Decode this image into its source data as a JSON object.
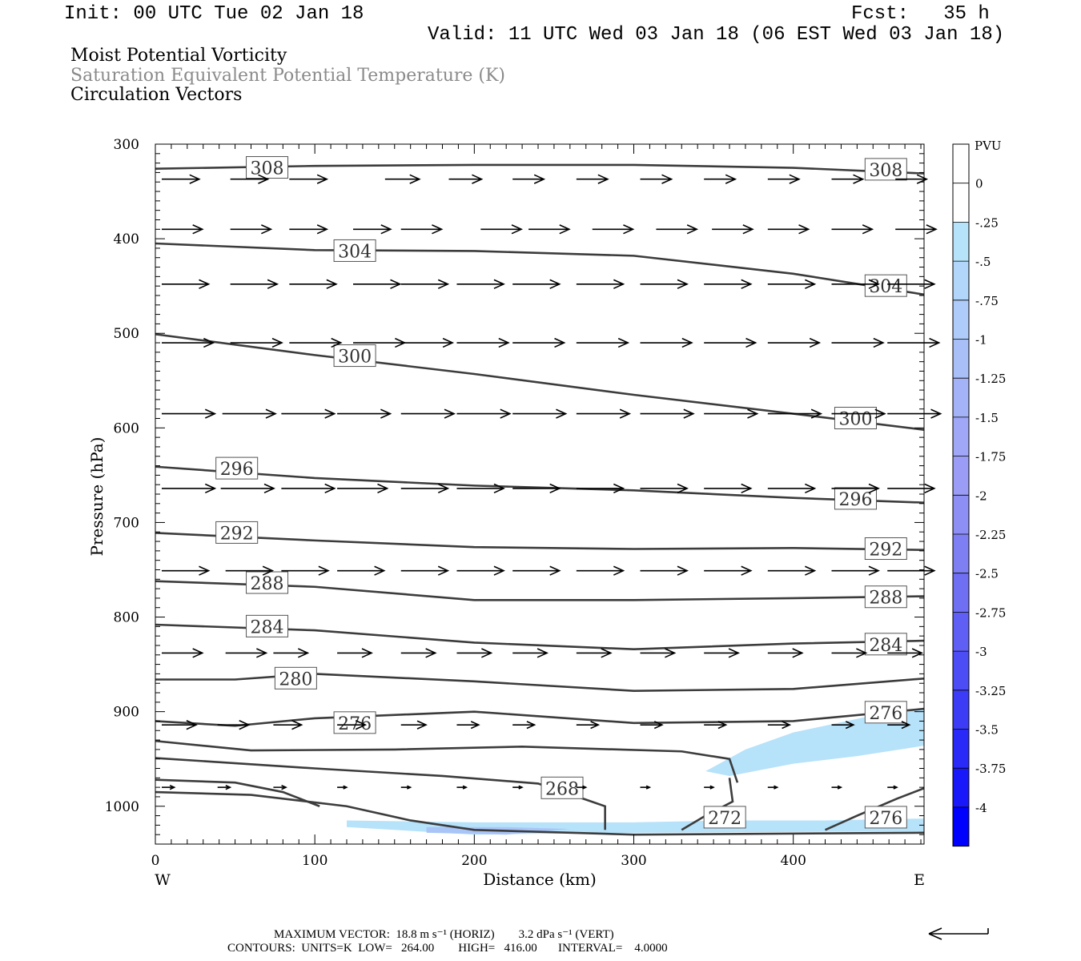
{
  "header": {
    "init": "Init: 00 UTC Tue 02 Jan 18",
    "fcst": "Fcst:   35 h",
    "valid": "Valid: 11 UTC Wed 03 Jan 18 (06 EST Wed 03 Jan 18)",
    "field1": "Moist Potential Vorticity",
    "field2": "Saturation Equivalent Potential Temperature (K)",
    "field3": "Circulation Vectors"
  },
  "footer": {
    "max_vector": "MAXIMUM VECTOR:  18.8 m s⁻¹ (HORIZ)        3.2 dPa s⁻¹ (VERT)",
    "contours": "CONTOURS:  UNITS=K  LOW=   264.00        HIGH=   416.00       INTERVAL=    4.0000"
  },
  "colors": {
    "contour": "#3c3c3c",
    "pv_shade_light": "#b6e2fa",
    "pv_shade_mid": "#a9c5f7",
    "pv_shade_deep": "#8f9cf0",
    "vector": "#000000"
  },
  "chart_data": {
    "type": "cross-section",
    "xlabel": "Distance (km)",
    "ylabel": "Pressure (hPa)",
    "x_left_label": "W",
    "x_right_label": "E",
    "xlim": [
      0,
      482
    ],
    "ylim": [
      300,
      1040
    ],
    "y_scale": "linear, inverted",
    "x_ticks": [
      0,
      100,
      200,
      300,
      400
    ],
    "y_ticks": [
      300,
      400,
      500,
      600,
      700,
      800,
      900,
      1000
    ],
    "colorbar": {
      "title": "PVU",
      "labels": [
        "0",
        "-.25",
        "-.5",
        "-.75",
        "-1",
        "-1.25",
        "-1.5",
        "-1.75",
        "-2",
        "-2.25",
        "-2.5",
        "-2.75",
        "-3",
        "-3.25",
        "-3.5",
        "-3.75",
        "-4"
      ],
      "colors": [
        "#ffffff",
        "#ffffff",
        "#b6e2fa",
        "#b1d6f9",
        "#aecbf9",
        "#a9bff8",
        "#a4b3f7",
        "#9fa7f6",
        "#9a9cf5",
        "#8e8ff4",
        "#7f7ff4",
        "#6f6ff4",
        "#5f5ff5",
        "#4d4df6",
        "#3c3cf7",
        "#2a2af8",
        "#1818fa",
        "#0000ff"
      ]
    },
    "contours": [
      {
        "label": "308",
        "points": [
          [
            0,
            326
          ],
          [
            100,
            323
          ],
          [
            200,
            322
          ],
          [
            300,
            322
          ],
          [
            400,
            325
          ],
          [
            482,
            331
          ]
        ],
        "label_positions": [
          [
            56,
            325
          ],
          [
            444,
            327
          ]
        ]
      },
      {
        "label": "304",
        "points": [
          [
            0,
            405
          ],
          [
            100,
            412
          ],
          [
            200,
            413
          ],
          [
            300,
            418
          ],
          [
            400,
            437
          ],
          [
            482,
            459
          ]
        ],
        "label_positions": [
          [
            111,
            413
          ],
          [
            444,
            450
          ]
        ]
      },
      {
        "label": "300",
        "points": [
          [
            0,
            501
          ],
          [
            100,
            523
          ],
          [
            200,
            543
          ],
          [
            300,
            565
          ],
          [
            400,
            585
          ],
          [
            482,
            602
          ]
        ],
        "label_positions": [
          [
            111,
            524
          ],
          [
            425,
            590
          ]
        ]
      },
      {
        "label": "296",
        "points": [
          [
            0,
            641
          ],
          [
            100,
            653
          ],
          [
            200,
            661
          ],
          [
            300,
            666
          ],
          [
            400,
            674
          ],
          [
            482,
            679
          ]
        ],
        "label_positions": [
          [
            37,
            643
          ],
          [
            425,
            675
          ]
        ]
      },
      {
        "label": "292",
        "points": [
          [
            0,
            711
          ],
          [
            100,
            719
          ],
          [
            200,
            726
          ],
          [
            300,
            728
          ],
          [
            400,
            727
          ],
          [
            482,
            729
          ]
        ],
        "label_positions": [
          [
            37,
            711
          ],
          [
            444,
            728
          ]
        ]
      },
      {
        "label": "288",
        "points": [
          [
            0,
            762
          ],
          [
            100,
            768
          ],
          [
            200,
            782
          ],
          [
            300,
            782
          ],
          [
            400,
            780
          ],
          [
            482,
            778
          ]
        ],
        "label_positions": [
          [
            56,
            764
          ],
          [
            444,
            779
          ]
        ]
      },
      {
        "label": "284",
        "points": [
          [
            0,
            808
          ],
          [
            100,
            814
          ],
          [
            200,
            827
          ],
          [
            300,
            834
          ],
          [
            400,
            828
          ],
          [
            482,
            825
          ]
        ],
        "label_positions": [
          [
            56,
            810
          ],
          [
            444,
            829
          ]
        ]
      },
      {
        "label": "280",
        "points": [
          [
            0,
            866
          ],
          [
            50,
            866
          ],
          [
            100,
            860
          ],
          [
            200,
            868
          ],
          [
            300,
            878
          ],
          [
            400,
            876
          ],
          [
            482,
            865
          ]
        ],
        "label_positions": [
          [
            74,
            865
          ],
          [
            444,
            0
          ]
        ]
      },
      {
        "label": "276",
        "points": [
          [
            0,
            910
          ],
          [
            50,
            915
          ],
          [
            100,
            907
          ],
          [
            200,
            900
          ],
          [
            300,
            912
          ],
          [
            400,
            910
          ],
          [
            482,
            897
          ]
        ],
        "label_positions": [
          [
            111,
            912
          ],
          [
            444,
            901
          ]
        ]
      },
      {
        "label": "",
        "points": [
          [
            0,
            931
          ],
          [
            60,
            941
          ],
          [
            150,
            940
          ],
          [
            230,
            937
          ],
          [
            330,
            942
          ],
          [
            360,
            950
          ],
          [
            365,
            975
          ]
        ],
        "label_positions": []
      },
      {
        "label": "268",
        "points": [
          [
            0,
            949
          ],
          [
            100,
            960
          ],
          [
            180,
            968
          ],
          [
            240,
            976
          ],
          [
            270,
            993
          ],
          [
            282,
            1000
          ],
          [
            282,
            1025
          ]
        ],
        "label_positions": [
          [
            241,
            981
          ]
        ]
      },
      {
        "label": "",
        "points": [
          [
            0,
            972
          ],
          [
            50,
            975
          ],
          [
            80,
            985
          ],
          [
            103,
            1000
          ]
        ],
        "label_positions": []
      },
      {
        "label": "",
        "points": [
          [
            0,
            985
          ],
          [
            60,
            988
          ],
          [
            120,
            1000
          ],
          [
            160,
            1015
          ],
          [
            200,
            1025
          ],
          [
            300,
            1030
          ],
          [
            482,
            1028
          ]
        ],
        "label_positions": []
      },
      {
        "label": "272",
        "points": [
          [
            330,
            1025
          ],
          [
            345,
            1010
          ],
          [
            362,
            995
          ],
          [
            360,
            970
          ]
        ],
        "label_positions": [
          [
            343,
            1012
          ]
        ]
      },
      {
        "label": "276",
        "points": [
          [
            420,
            1025
          ],
          [
            440,
            1010
          ],
          [
            465,
            992
          ],
          [
            482,
            981
          ]
        ],
        "label_positions": [
          [
            444,
            1012
          ]
        ]
      }
    ],
    "pv_shading": [
      {
        "level": "-.25",
        "points": [
          [
            345,
            963
          ],
          [
            370,
            940
          ],
          [
            400,
            922
          ],
          [
            450,
            904
          ],
          [
            482,
            897
          ],
          [
            482,
            936
          ],
          [
            440,
            947
          ],
          [
            400,
            955
          ],
          [
            360,
            968
          ]
        ]
      },
      {
        "level": "-.25",
        "points": [
          [
            120,
            1015
          ],
          [
            200,
            1017
          ],
          [
            300,
            1017
          ],
          [
            360,
            1015
          ],
          [
            420,
            1015
          ],
          [
            482,
            1013
          ],
          [
            482,
            1027
          ],
          [
            420,
            1027
          ],
          [
            300,
            1028
          ],
          [
            200,
            1030
          ],
          [
            120,
            1022
          ]
        ]
      },
      {
        "level": "-.5",
        "points": [
          [
            170,
            1022
          ],
          [
            220,
            1022
          ],
          [
            260,
            1024
          ],
          [
            220,
            1030
          ],
          [
            170,
            1028
          ]
        ]
      }
    ],
    "vectors": [
      {
        "p": 337,
        "row": [
          [
            0,
            24
          ],
          [
            43,
            24
          ],
          [
            80,
            24
          ],
          [
            140,
            22
          ],
          [
            180,
            21
          ],
          [
            220,
            20
          ],
          [
            260,
            20
          ],
          [
            300,
            20
          ],
          [
            340,
            20
          ],
          [
            380,
            20
          ],
          [
            420,
            20
          ],
          [
            460,
            20
          ]
        ]
      },
      {
        "p": 390,
        "row": [
          [
            0,
            26
          ],
          [
            43,
            26
          ],
          [
            80,
            24
          ],
          [
            120,
            24
          ],
          [
            150,
            26
          ],
          [
            200,
            26
          ],
          [
            230,
            26
          ],
          [
            270,
            26
          ],
          [
            310,
            26
          ],
          [
            345,
            26
          ],
          [
            380,
            26
          ],
          [
            420,
            26
          ],
          [
            460,
            26
          ]
        ]
      },
      {
        "p": 448,
        "row": [
          [
            0,
            30
          ],
          [
            43,
            30
          ],
          [
            80,
            30
          ],
          [
            120,
            30
          ],
          [
            150,
            30
          ],
          [
            185,
            30
          ],
          [
            220,
            30
          ],
          [
            260,
            30
          ],
          [
            300,
            30
          ],
          [
            340,
            30
          ],
          [
            380,
            30
          ],
          [
            420,
            30
          ],
          [
            455,
            30
          ]
        ]
      },
      {
        "p": 510,
        "row": [
          [
            0,
            33
          ],
          [
            43,
            33
          ],
          [
            80,
            33
          ],
          [
            120,
            33
          ],
          [
            150,
            33
          ],
          [
            185,
            33
          ],
          [
            220,
            33
          ],
          [
            260,
            33
          ],
          [
            300,
            33
          ],
          [
            340,
            33
          ],
          [
            380,
            33
          ],
          [
            420,
            33
          ],
          [
            455,
            33
          ]
        ]
      },
      {
        "p": 585,
        "row": [
          [
            0,
            34
          ],
          [
            38,
            34
          ],
          [
            75,
            34
          ],
          [
            110,
            34
          ],
          [
            150,
            34
          ],
          [
            185,
            34
          ],
          [
            220,
            34
          ],
          [
            260,
            34
          ],
          [
            300,
            34
          ],
          [
            340,
            34
          ],
          [
            380,
            34
          ],
          [
            420,
            34
          ],
          [
            455,
            34
          ]
        ]
      },
      {
        "p": 664,
        "row": [
          [
            0,
            34
          ],
          [
            37,
            34
          ],
          [
            75,
            34
          ],
          [
            110,
            32
          ],
          [
            150,
            30
          ],
          [
            185,
            30
          ],
          [
            220,
            30
          ],
          [
            260,
            30
          ],
          [
            300,
            30
          ],
          [
            340,
            30
          ],
          [
            380,
            30
          ],
          [
            420,
            30
          ],
          [
            455,
            30
          ]
        ]
      },
      {
        "p": 751,
        "row": [
          [
            0,
            30
          ],
          [
            40,
            30
          ],
          [
            75,
            30
          ],
          [
            110,
            30
          ],
          [
            150,
            30
          ],
          [
            185,
            30
          ],
          [
            220,
            30
          ],
          [
            260,
            30
          ],
          [
            300,
            30
          ],
          [
            340,
            30
          ],
          [
            380,
            30
          ],
          [
            420,
            30
          ],
          [
            455,
            30
          ]
        ]
      },
      {
        "p": 838,
        "row": [
          [
            0,
            26
          ],
          [
            40,
            26
          ],
          [
            70,
            22
          ],
          [
            110,
            22
          ],
          [
            150,
            22
          ],
          [
            185,
            22
          ],
          [
            220,
            22
          ],
          [
            260,
            22
          ],
          [
            300,
            22
          ],
          [
            340,
            22
          ],
          [
            380,
            22
          ],
          [
            420,
            22
          ],
          [
            455,
            22
          ]
        ]
      },
      {
        "p": 914,
        "row": [
          [
            0,
            22
          ],
          [
            35,
            20
          ],
          [
            70,
            18
          ],
          [
            110,
            18
          ],
          [
            150,
            16
          ],
          [
            185,
            14
          ],
          [
            220,
            14
          ],
          [
            260,
            14
          ],
          [
            300,
            14
          ],
          [
            340,
            14
          ],
          [
            380,
            14
          ],
          [
            420,
            14
          ],
          [
            455,
            14
          ]
        ]
      },
      {
        "p": 980,
        "row": [
          [
            0,
            8
          ],
          [
            35,
            8
          ],
          [
            70,
            8
          ],
          [
            110,
            6
          ],
          [
            150,
            6
          ],
          [
            185,
            6
          ],
          [
            220,
            6
          ],
          [
            260,
            6
          ],
          [
            300,
            6
          ],
          [
            340,
            6
          ],
          [
            380,
            6
          ],
          [
            420,
            6
          ],
          [
            455,
            6
          ]
        ]
      }
    ]
  }
}
